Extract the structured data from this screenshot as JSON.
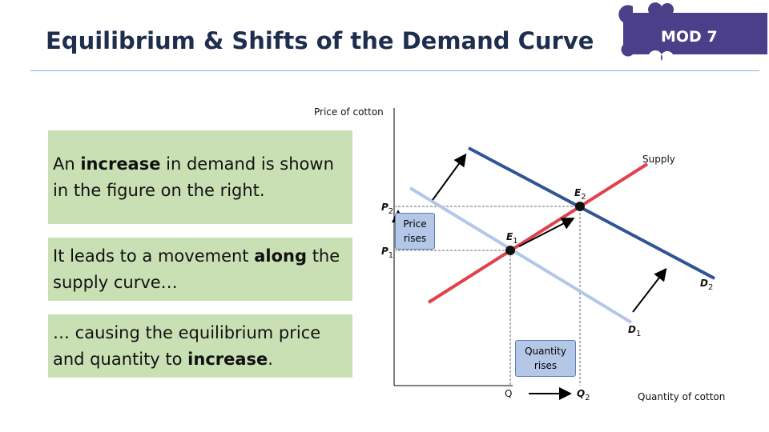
{
  "header": {
    "title": "Equilibrium & Shifts of the Demand Curve",
    "badge": "MOD 7"
  },
  "boxes": [
    {
      "parts": [
        {
          "text": "An ",
          "bold": false
        },
        {
          "text": "increase",
          "bold": true
        },
        {
          "text": " in demand is shown in the figure on the right.",
          "bold": false
        }
      ]
    },
    {
      "parts": [
        {
          "text": "It leads to a movement ",
          "bold": false
        },
        {
          "text": "along",
          "bold": true
        },
        {
          "text": " the supply curve…",
          "bold": false
        }
      ]
    },
    {
      "parts": [
        {
          "text": "… causing the equilibrium price and quantity to ",
          "bold": false
        },
        {
          "text": "increase",
          "bold": true
        },
        {
          "text": ".",
          "bold": false
        }
      ]
    }
  ],
  "diagram": {
    "y_axis_label": "Price of cotton",
    "x_axis_label": "Quantity of cotton",
    "supply_label": "Supply",
    "d1": {
      "main": "D",
      "sub": "1"
    },
    "d2": {
      "main": "D",
      "sub": "2"
    },
    "e1": {
      "main": "E",
      "sub": "1"
    },
    "e2": {
      "main": "E",
      "sub": "2"
    },
    "p1": {
      "main": "P",
      "sub": "1"
    },
    "p2": {
      "main": "P",
      "sub": "2"
    },
    "q": "Q",
    "q2": {
      "main": "Q",
      "sub": "2"
    },
    "price_note": "Price rises",
    "quantity_note": "Quantity rises"
  }
}
